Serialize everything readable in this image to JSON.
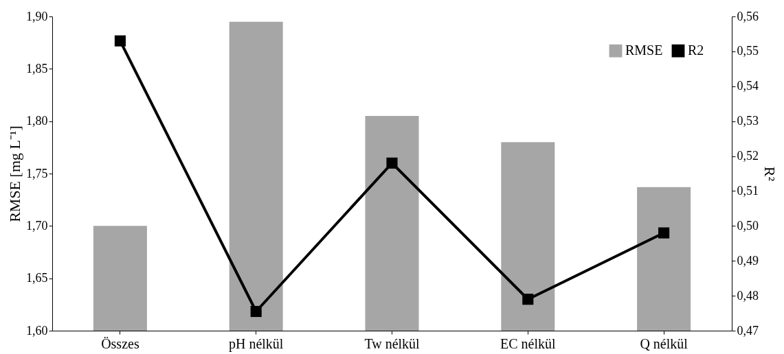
{
  "chart_data": {
    "type": "bar",
    "categories": [
      "Összes",
      "pH nélkül",
      "Tw nélkül",
      "EC nélkül",
      "Q nélkül"
    ],
    "ylabel": "RMSE [mg L⁻¹]",
    "y2label": "R²",
    "series": [
      {
        "name": "RMSE",
        "color": "#a6a6a6",
        "values": [
          1.7,
          1.895,
          1.805,
          1.78,
          1.737
        ]
      },
      {
        "name": "R2",
        "type": "line",
        "axis": "y2",
        "color": "#000000",
        "marker": "square",
        "values": [
          0.553,
          0.4755,
          0.518,
          0.479,
          0.498
        ]
      }
    ],
    "ylim": [
      1.6,
      1.9
    ],
    "yticks": [
      {
        "value": 1.6,
        "label": "1,60"
      },
      {
        "value": 1.65,
        "label": "1,65"
      },
      {
        "value": 1.7,
        "label": "1,70"
      },
      {
        "value": 1.75,
        "label": "1,75"
      },
      {
        "value": 1.8,
        "label": "1,80"
      },
      {
        "value": 1.85,
        "label": "1,85"
      },
      {
        "value": 1.9,
        "label": "1,90"
      }
    ],
    "y2lim": [
      0.47,
      0.56
    ],
    "y2ticks": [
      {
        "value": 0.47,
        "label": "0,47"
      },
      {
        "value": 0.48,
        "label": "0,48"
      },
      {
        "value": 0.49,
        "label": "0,49"
      },
      {
        "value": 0.5,
        "label": "0,50"
      },
      {
        "value": 0.51,
        "label": "0,51"
      },
      {
        "value": 0.52,
        "label": "0,52"
      },
      {
        "value": 0.53,
        "label": "0,53"
      },
      {
        "value": 0.54,
        "label": "0,54"
      },
      {
        "value": 0.55,
        "label": "0,55"
      },
      {
        "value": 0.56,
        "label": "0,56"
      }
    ],
    "grid": false,
    "legend": "top right"
  }
}
